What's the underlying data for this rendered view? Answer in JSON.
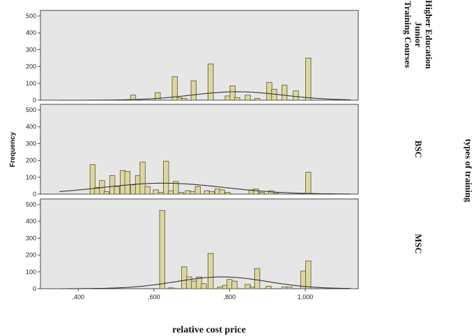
{
  "chart_data": {
    "type": "bar",
    "kind": "faceted histogram with normal curves",
    "xlabel": "relative cost price",
    "ylabel": "Frequency",
    "facet_title": "types of training",
    "xlim": [
      0.3,
      1.14
    ],
    "x_ticks": [
      ",400",
      ",600",
      ",800",
      "1,000"
    ],
    "x_tick_values": [
      0.4,
      0.6,
      0.8,
      1.0
    ],
    "ylim": [
      0,
      500
    ],
    "y_ticks": [
      "0",
      "100",
      "200",
      "300",
      "400",
      "500"
    ],
    "y_tick_values": [
      0,
      100,
      200,
      300,
      400,
      500
    ],
    "bar_width": 0.015,
    "bar_color": "#dcd7a0",
    "panel_color": "#e6e6e6",
    "panels": [
      {
        "label_lines": [
          "Higher Education",
          "Junior",
          "Training Courses"
        ],
        "bars": [
          {
            "x": 0.545,
            "y": 30
          },
          {
            "x": 0.61,
            "y": 45
          },
          {
            "x": 0.655,
            "y": 140
          },
          {
            "x": 0.668,
            "y": 15
          },
          {
            "x": 0.68,
            "y": 10
          },
          {
            "x": 0.705,
            "y": 115
          },
          {
            "x": 0.75,
            "y": 215
          },
          {
            "x": 0.795,
            "y": 25
          },
          {
            "x": 0.808,
            "y": 85
          },
          {
            "x": 0.82,
            "y": 15
          },
          {
            "x": 0.848,
            "y": 30
          },
          {
            "x": 0.873,
            "y": 10
          },
          {
            "x": 0.905,
            "y": 105
          },
          {
            "x": 0.918,
            "y": 65
          },
          {
            "x": 0.945,
            "y": 90
          },
          {
            "x": 0.975,
            "y": 55
          },
          {
            "x": 1.008,
            "y": 250
          }
        ],
        "curve": {
          "mean": 0.82,
          "sd": 0.12,
          "peak": 50
        }
      },
      {
        "label_lines": [
          "BSC"
        ],
        "bars": [
          {
            "x": 0.438,
            "y": 175
          },
          {
            "x": 0.45,
            "y": 40
          },
          {
            "x": 0.463,
            "y": 80
          },
          {
            "x": 0.475,
            "y": 15
          },
          {
            "x": 0.49,
            "y": 110
          },
          {
            "x": 0.502,
            "y": 45
          },
          {
            "x": 0.518,
            "y": 140
          },
          {
            "x": 0.53,
            "y": 135
          },
          {
            "x": 0.545,
            "y": 55
          },
          {
            "x": 0.558,
            "y": 110
          },
          {
            "x": 0.57,
            "y": 190
          },
          {
            "x": 0.583,
            "y": 45
          },
          {
            "x": 0.605,
            "y": 25
          },
          {
            "x": 0.618,
            "y": 10
          },
          {
            "x": 0.632,
            "y": 195
          },
          {
            "x": 0.645,
            "y": 20
          },
          {
            "x": 0.658,
            "y": 75
          },
          {
            "x": 0.672,
            "y": 10
          },
          {
            "x": 0.69,
            "y": 20
          },
          {
            "x": 0.703,
            "y": 15
          },
          {
            "x": 0.716,
            "y": 45
          },
          {
            "x": 0.74,
            "y": 20
          },
          {
            "x": 0.753,
            "y": 15
          },
          {
            "x": 0.768,
            "y": 30
          },
          {
            "x": 0.78,
            "y": 25
          },
          {
            "x": 0.795,
            "y": 10
          },
          {
            "x": 0.858,
            "y": 25
          },
          {
            "x": 0.87,
            "y": 30
          },
          {
            "x": 0.885,
            "y": 10
          },
          {
            "x": 0.91,
            "y": 20
          },
          {
            "x": 0.923,
            "y": 5
          },
          {
            "x": 0.978,
            "y": 5
          },
          {
            "x": 1.008,
            "y": 130
          }
        ],
        "curve": {
          "mean": 0.625,
          "sd": 0.16,
          "peak": 65
        }
      },
      {
        "label_lines": [
          "MSC"
        ],
        "bars": [
          {
            "x": 0.622,
            "y": 465
          },
          {
            "x": 0.645,
            "y": 5
          },
          {
            "x": 0.68,
            "y": 130
          },
          {
            "x": 0.693,
            "y": 70
          },
          {
            "x": 0.706,
            "y": 45
          },
          {
            "x": 0.719,
            "y": 70
          },
          {
            "x": 0.732,
            "y": 30
          },
          {
            "x": 0.75,
            "y": 210
          },
          {
            "x": 0.775,
            "y": 10
          },
          {
            "x": 0.788,
            "y": 20
          },
          {
            "x": 0.8,
            "y": 55
          },
          {
            "x": 0.813,
            "y": 45
          },
          {
            "x": 0.848,
            "y": 25
          },
          {
            "x": 0.86,
            "y": 10
          },
          {
            "x": 0.873,
            "y": 120
          },
          {
            "x": 0.903,
            "y": 15
          },
          {
            "x": 0.945,
            "y": 10
          },
          {
            "x": 0.958,
            "y": 10
          },
          {
            "x": 0.995,
            "y": 105
          },
          {
            "x": 1.008,
            "y": 165
          }
        ],
        "curve": {
          "mean": 0.78,
          "sd": 0.12,
          "peak": 70
        }
      }
    ]
  }
}
